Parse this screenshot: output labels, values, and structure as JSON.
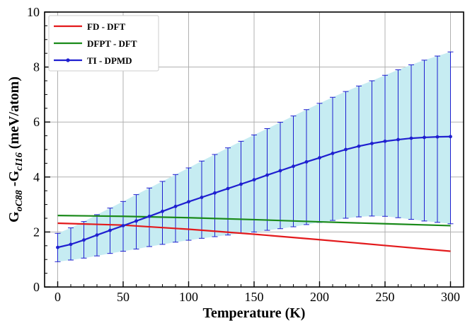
{
  "chart_data": {
    "type": "line",
    "xlabel": "Temperature (K)",
    "ylabel": {
      "main1": "G",
      "sub1": "oC88",
      "mid": " -G",
      "sub2": "cI16",
      "unit": " (meV/atom)"
    },
    "xlim": [
      -10,
      310
    ],
    "ylim": [
      0,
      10
    ],
    "xticks": [
      0,
      50,
      100,
      150,
      200,
      250,
      300
    ],
    "yticks": [
      0,
      2,
      4,
      6,
      8,
      10
    ],
    "grid": true,
    "legend_position": "top-left",
    "series": [
      {
        "name": "FD - DFT",
        "color": "#e31a1c",
        "x": [
          0,
          50,
          100,
          150,
          200,
          250,
          300
        ],
        "y": [
          2.32,
          2.25,
          2.1,
          1.92,
          1.72,
          1.51,
          1.3
        ]
      },
      {
        "name": "DFPT - DFT",
        "color": "#1a8a1a",
        "x": [
          0,
          50,
          100,
          150,
          200,
          250,
          300
        ],
        "y": [
          2.6,
          2.57,
          2.52,
          2.45,
          2.37,
          2.3,
          2.23
        ]
      },
      {
        "name": "TI - DPMD",
        "color": "#1f1fd0",
        "fill_color": "#c6ecf2",
        "x": [
          0,
          10,
          20,
          30,
          40,
          50,
          60,
          70,
          80,
          90,
          100,
          110,
          120,
          130,
          140,
          150,
          160,
          170,
          180,
          190,
          200,
          210,
          220,
          230,
          240,
          250,
          260,
          270,
          280,
          290,
          300
        ],
        "y": [
          1.44,
          1.55,
          1.71,
          1.89,
          2.06,
          2.23,
          2.4,
          2.57,
          2.75,
          2.93,
          3.1,
          3.26,
          3.42,
          3.58,
          3.74,
          3.9,
          4.07,
          4.23,
          4.39,
          4.55,
          4.7,
          4.86,
          5.0,
          5.12,
          5.22,
          5.3,
          5.36,
          5.41,
          5.44,
          5.46,
          5.47
        ],
        "lower": [
          0.92,
          0.98,
          1.05,
          1.13,
          1.22,
          1.3,
          1.38,
          1.47,
          1.55,
          1.63,
          1.7,
          1.77,
          1.83,
          1.89,
          1.95,
          2.0,
          2.06,
          2.12,
          2.19,
          2.27,
          2.35,
          2.42,
          2.5,
          2.55,
          2.58,
          2.57,
          2.52,
          2.46,
          2.4,
          2.35,
          2.3
        ],
        "upper": [
          1.95,
          2.15,
          2.38,
          2.63,
          2.87,
          3.11,
          3.36,
          3.6,
          3.84,
          4.09,
          4.33,
          4.58,
          4.82,
          5.06,
          5.3,
          5.53,
          5.76,
          5.99,
          6.22,
          6.45,
          6.68,
          6.9,
          7.11,
          7.31,
          7.5,
          7.7,
          7.9,
          8.08,
          8.25,
          8.4,
          8.55
        ]
      }
    ]
  }
}
